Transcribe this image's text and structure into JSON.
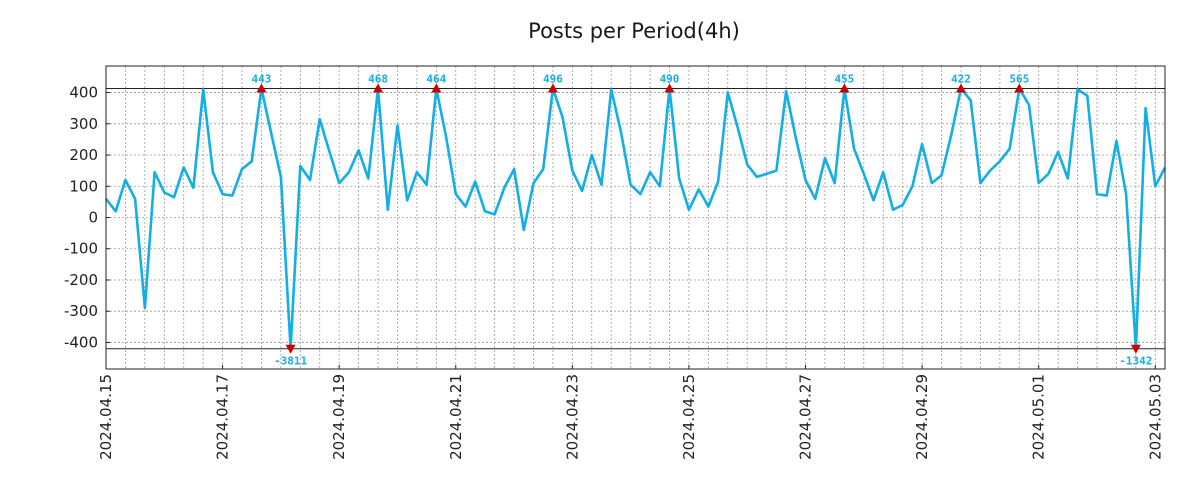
{
  "chart_data": {
    "type": "line",
    "title": "Posts per Period(4h)",
    "xlabel": "",
    "ylabel": "",
    "ylim": [
      -485,
      485
    ],
    "xlim": [
      0,
      109
    ],
    "clip": {
      "upper": 413,
      "lower": -420
    },
    "yticks": [
      400,
      300,
      200,
      100,
      0,
      -100,
      -200,
      -300,
      -400
    ],
    "ytick_labels": [
      "400",
      "300",
      "200",
      "100",
      "0",
      "-100",
      "-200",
      "-300",
      "-400"
    ],
    "xticks": [
      {
        "x": 0,
        "label": "2024.04.15"
      },
      {
        "x": 12,
        "label": "2024.04.17"
      },
      {
        "x": 24,
        "label": "2024.04.19"
      },
      {
        "x": 36,
        "label": "2024.04.21"
      },
      {
        "x": 48,
        "label": "2024.04.23"
      },
      {
        "x": 60,
        "label": "2024.04.25"
      },
      {
        "x": 72,
        "label": "2024.04.27"
      },
      {
        "x": 84,
        "label": "2024.04.29"
      },
      {
        "x": 96,
        "label": "2024.05.01"
      },
      {
        "x": 108,
        "label": "2024.05.03"
      }
    ],
    "minor_grid_step": 2,
    "series": [
      {
        "name": "posts",
        "color": "#12aee8",
        "values": [
          60,
          20,
          120,
          60,
          -290,
          145,
          80,
          65,
          160,
          95,
          410,
          145,
          75,
          70,
          155,
          180,
          413,
          270,
          130,
          -420,
          165,
          120,
          315,
          210,
          110,
          145,
          215,
          125,
          413,
          25,
          295,
          55,
          145,
          105,
          413,
          260,
          75,
          35,
          115,
          20,
          10,
          95,
          155,
          -40,
          110,
          155,
          413,
          320,
          150,
          85,
          200,
          105,
          410,
          275,
          105,
          75,
          145,
          100,
          413,
          125,
          25,
          90,
          35,
          115,
          400,
          290,
          170,
          130,
          140,
          150,
          405,
          255,
          120,
          60,
          190,
          110,
          413,
          220,
          140,
          55,
          145,
          25,
          40,
          100,
          235,
          110,
          135,
          265,
          413,
          375,
          110,
          150,
          180,
          220,
          413,
          360,
          110,
          140,
          210,
          125,
          410,
          390,
          75,
          70,
          245,
          75,
          -420,
          350,
          100,
          160
        ]
      }
    ],
    "annotations": [
      {
        "x": 16,
        "label": "443",
        "kind": "max"
      },
      {
        "x": 28,
        "label": "468",
        "kind": "max"
      },
      {
        "x": 34,
        "label": "464",
        "kind": "max"
      },
      {
        "x": 46,
        "label": "496",
        "kind": "max"
      },
      {
        "x": 58,
        "label": "490",
        "kind": "max"
      },
      {
        "x": 76,
        "label": "455",
        "kind": "max"
      },
      {
        "x": 88,
        "label": "422",
        "kind": "max"
      },
      {
        "x": 94,
        "label": "565",
        "kind": "max"
      },
      {
        "x": 19,
        "label": "-3811",
        "kind": "min"
      },
      {
        "x": 106,
        "label": "-1342",
        "kind": "min"
      }
    ],
    "colors": {
      "line": "#12aee8",
      "marker": "#cc0000",
      "label": "#12aee8"
    }
  }
}
